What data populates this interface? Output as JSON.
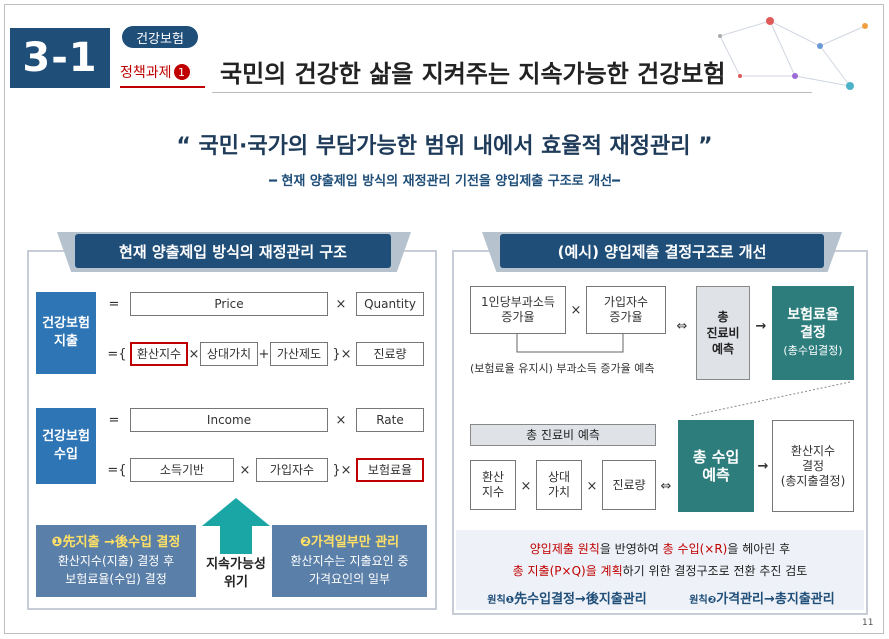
{
  "header": {
    "number": "3-1",
    "pill": "건강보험",
    "policy_label": "정책과제",
    "policy_num": "1",
    "title": "국민의 건강한 삶을 지켜주는 지속가능한 건강보험"
  },
  "quote": "“ 국민·국가의 부담가능한 범위 내에서 효율적 재정관리 ”",
  "subquote": "━ 현재 양출제입 방식의 재정관리 기전을 양입제출 구조로 개선━",
  "left": {
    "ribbon": "현재 양출제입 방식의 재정관리 구조",
    "exp_label": "건강보험\n지출",
    "price": "Price",
    "quantity": "Quantity",
    "convert": "환산지수",
    "relative": "상대가치",
    "surcharge": "가산제도",
    "medical_volume": "진료량",
    "inc_label": "건강보험\n수입",
    "income": "Income",
    "rate": "Rate",
    "income_base": "소득기반",
    "subscribers": "가입자수",
    "premium_rate": "보험료율",
    "eq": "=",
    "eq_brace": "={",
    "times": "×",
    "plus": "+",
    "close": "}×",
    "info1_title": "❶先지출 →後수입 결정",
    "info1_body": "환산지수(지출) 결정 후\n보험료율(수입) 결정",
    "arrow_label": "지속가능성\n위기",
    "info2_title": "❷가격일부만 관리",
    "info2_body": "환산지수는 지출요인 중\n가격요인의 일부"
  },
  "right": {
    "ribbon": "(예시) 양입제출 결정구조로 개선",
    "box_income_growth": "1인당부과소득\n증가율",
    "box_subscriber_growth": "가입자수\n증가율",
    "times": "×",
    "note_forecast": "(보험료율 유지시) 부과소득 증가율 예측",
    "iff": "⇔",
    "total_cost": "총\n진료비\n예측",
    "arrow": "→",
    "premium_decision": "보험료율\n결정",
    "premium_decision_sub": "(총수입결정)",
    "total_cost_forecast": "총 진료비 예측",
    "cell_convert": "환산\n지수",
    "cell_relative": "상대\n가치",
    "cell_volume": "진료량",
    "total_income": "총 수입\n예측",
    "convert_decision": "환산지수\n결정\n(총지출결정)",
    "note_line1_a": "양입제출 원칙",
    "note_line1_b": "을 반영하여 ",
    "note_line1_c": "총 수입(×R)",
    "note_line1_d": "을 헤아린 후",
    "note_line2_a": "총 지출(P×Q)을 계획",
    "note_line2_b": "하기 위한 결정구조로 전환 추진 검토",
    "principle1_tag": "원칙❶",
    "principle1": "先수입결정→後지출관리",
    "principle2_tag": "원칙❷",
    "principle2": "가격관리→총지출관리"
  },
  "page_number": "11",
  "colors": {
    "navy": "#1f4e79",
    "red": "#c00000",
    "teal": "#2e7d7d",
    "blue": "#2e75b6"
  }
}
